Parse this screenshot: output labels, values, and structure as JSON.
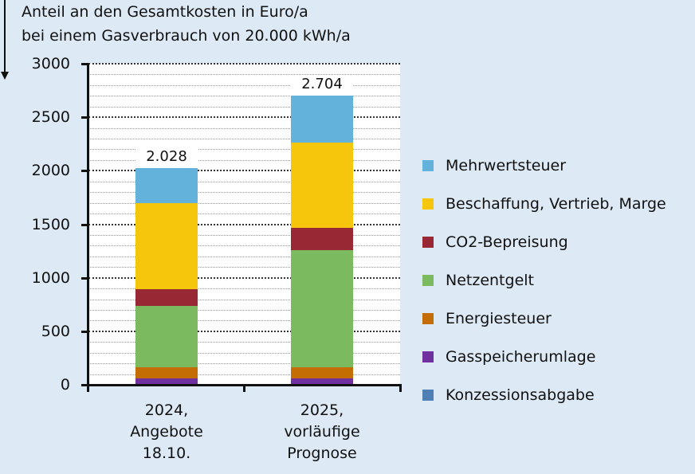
{
  "title": {
    "line1": "Anteil an den Gesamtkosten in Euro/a",
    "line2": "bei einem Gasverbrauch von 20.000 kWh/a"
  },
  "icons": {
    "arrow": "arrow-down-icon"
  },
  "y_ticks": [
    "0",
    "500",
    "1000",
    "1500",
    "2000",
    "2500",
    "3000"
  ],
  "bars": [
    {
      "label_lines": [
        "2024,",
        "Angebote",
        "18.10."
      ],
      "total_label": "2.028"
    },
    {
      "label_lines": [
        "2025,",
        "vorläufige",
        "Prognose"
      ],
      "total_label": "2.704"
    }
  ],
  "legend": [
    {
      "label": "Mehrwertsteuer",
      "color": "#63B2DB"
    },
    {
      "label": "Beschaffung, Vertrieb, Marge",
      "color": "#F5C60B"
    },
    {
      "label": "CO2-Bepreisung",
      "color": "#982934"
    },
    {
      "label": "Netzentgelt",
      "color": "#7CBA60"
    },
    {
      "label": "Energiesteuer",
      "color": "#C46D02"
    },
    {
      "label": "Gasspeicherumlage",
      "color": "#7030A0"
    },
    {
      "label": "Konzessionsabgabe",
      "color": "#4F7FB5"
    }
  ],
  "chart_data": {
    "type": "bar",
    "stacked": true,
    "title": "Anteil an den Gesamtkosten in Euro/a bei einem Gasverbrauch von 20.000 kWh/a",
    "xlabel": "",
    "ylabel": "Euro/a",
    "ylim": [
      0,
      3000
    ],
    "y_major_step": 500,
    "y_minor_step": 100,
    "grid": true,
    "legend_position": "right",
    "categories": [
      "2024, Angebote 18.10.",
      "2025, vorläufige Prognose"
    ],
    "totals": [
      2028,
      2704
    ],
    "series": [
      {
        "name": "Konzessionsabgabe",
        "color": "#4F7FB5",
        "values": [
          0,
          0
        ]
      },
      {
        "name": "Gasspeicherumlage",
        "color": "#7030A0",
        "values": [
          60,
          60
        ]
      },
      {
        "name": "Energiesteuer",
        "color": "#C46D02",
        "values": [
          104,
          104
        ]
      },
      {
        "name": "Netzentgelt",
        "color": "#7CBA60",
        "values": [
          573,
          1094
        ]
      },
      {
        "name": "CO2-Bepreisung",
        "color": "#982934",
        "values": [
          156,
          209
        ]
      },
      {
        "name": "Beschaffung, Vertrieb, Marge",
        "color": "#F5C60B",
        "values": [
          805,
          797
        ]
      },
      {
        "name": "Mehrwertsteuer",
        "color": "#63B2DB",
        "values": [
          330,
          440
        ]
      }
    ]
  }
}
